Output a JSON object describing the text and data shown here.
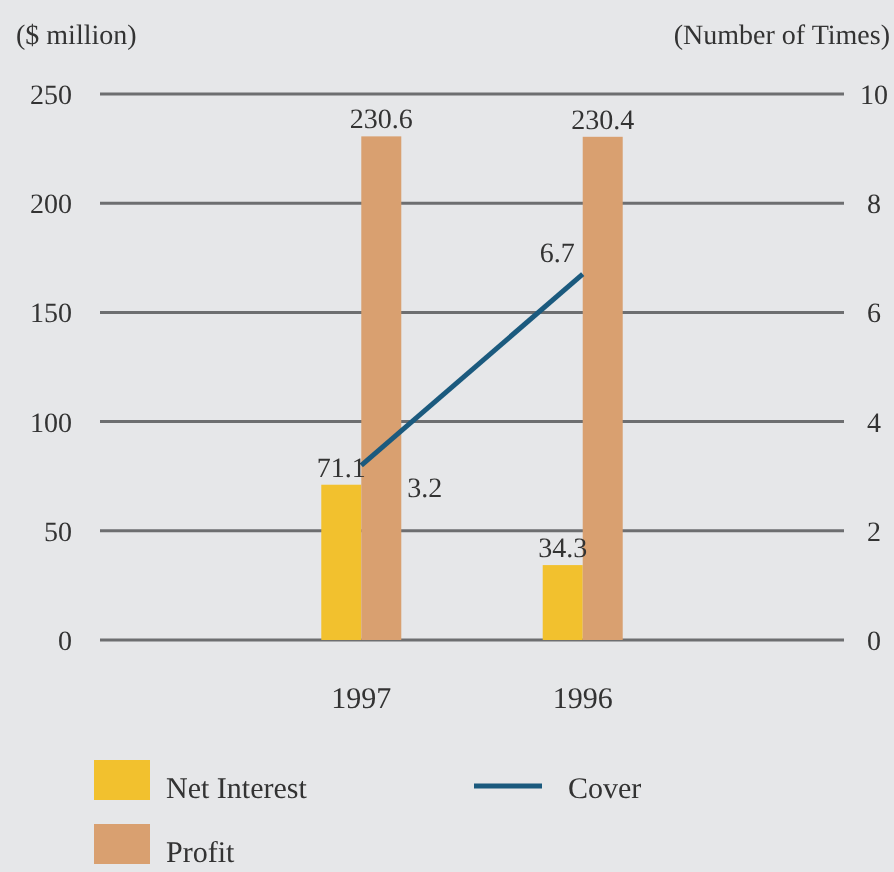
{
  "chart_data": {
    "type": "bar",
    "categories": [
      "1997",
      "1996"
    ],
    "ylabel": "($ million)",
    "y2label": "(Number of Times)",
    "series": [
      {
        "name": "Net Interest",
        "color": "#f2c12e",
        "values": [
          71.1,
          34.3
        ]
      },
      {
        "name": "Profit",
        "color": "#d9a070",
        "values": [
          230.6,
          230.4
        ]
      },
      {
        "name": "Cover",
        "type": "line",
        "axis": "y2",
        "color": "#1b5a7e",
        "values": [
          3.2,
          6.7
        ]
      }
    ],
    "ylim": [
      0,
      250
    ],
    "yticks": [
      0,
      50,
      100,
      150,
      200,
      250
    ],
    "y2lim": [
      0,
      10
    ],
    "y2ticks": [
      0,
      2,
      4,
      6,
      8,
      10
    ],
    "grid": "y",
    "legend": "bottom",
    "data_labels": true,
    "marker": "none"
  }
}
